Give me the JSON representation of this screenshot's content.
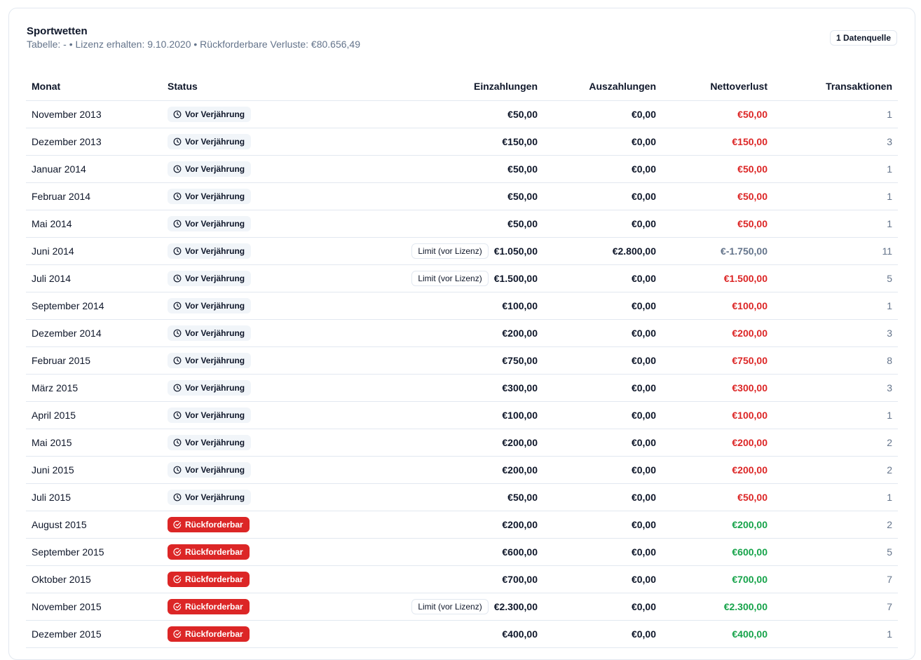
{
  "card": {
    "title": "Sportwetten",
    "subtitle": "Tabelle: - • Lizenz erhalten: 9.10.2020 • Rückforderbare Verluste: €80.656,49",
    "source_badge": "1 Datenquelle"
  },
  "table": {
    "headers": {
      "month": "Monat",
      "status": "Status",
      "deposits": "Einzahlungen",
      "withdrawals": "Auszahlungen",
      "net_loss": "Nettoverlust",
      "transactions": "Transaktionen"
    },
    "status_labels": {
      "before": "Vor Verjährung",
      "recoverable": "Rückforderbar"
    },
    "limit_label": "Limit (vor Lizenz)",
    "colors": {
      "loss": "#dc2626",
      "neutral": "#64748b",
      "gain": "#16a34a",
      "recoverable_badge": "#dc2626"
    },
    "rows": [
      {
        "month": "November 2013",
        "status": "before",
        "limit": false,
        "deposits": "€50,00",
        "withdrawals": "€0,00",
        "net": "€50,00",
        "net_tone": "loss",
        "tx": "1"
      },
      {
        "month": "Dezember 2013",
        "status": "before",
        "limit": false,
        "deposits": "€150,00",
        "withdrawals": "€0,00",
        "net": "€150,00",
        "net_tone": "loss",
        "tx": "3"
      },
      {
        "month": "Januar 2014",
        "status": "before",
        "limit": false,
        "deposits": "€50,00",
        "withdrawals": "€0,00",
        "net": "€50,00",
        "net_tone": "loss",
        "tx": "1"
      },
      {
        "month": "Februar 2014",
        "status": "before",
        "limit": false,
        "deposits": "€50,00",
        "withdrawals": "€0,00",
        "net": "€50,00",
        "net_tone": "loss",
        "tx": "1"
      },
      {
        "month": "Mai 2014",
        "status": "before",
        "limit": false,
        "deposits": "€50,00",
        "withdrawals": "€0,00",
        "net": "€50,00",
        "net_tone": "loss",
        "tx": "1"
      },
      {
        "month": "Juni 2014",
        "status": "before",
        "limit": true,
        "deposits": "€1.050,00",
        "withdrawals": "€2.800,00",
        "net": "€-1.750,00",
        "net_tone": "neutral",
        "tx": "11"
      },
      {
        "month": "Juli 2014",
        "status": "before",
        "limit": true,
        "deposits": "€1.500,00",
        "withdrawals": "€0,00",
        "net": "€1.500,00",
        "net_tone": "loss",
        "tx": "5"
      },
      {
        "month": "September 2014",
        "status": "before",
        "limit": false,
        "deposits": "€100,00",
        "withdrawals": "€0,00",
        "net": "€100,00",
        "net_tone": "loss",
        "tx": "1"
      },
      {
        "month": "Dezember 2014",
        "status": "before",
        "limit": false,
        "deposits": "€200,00",
        "withdrawals": "€0,00",
        "net": "€200,00",
        "net_tone": "loss",
        "tx": "3"
      },
      {
        "month": "Februar 2015",
        "status": "before",
        "limit": false,
        "deposits": "€750,00",
        "withdrawals": "€0,00",
        "net": "€750,00",
        "net_tone": "loss",
        "tx": "8"
      },
      {
        "month": "März 2015",
        "status": "before",
        "limit": false,
        "deposits": "€300,00",
        "withdrawals": "€0,00",
        "net": "€300,00",
        "net_tone": "loss",
        "tx": "3"
      },
      {
        "month": "April 2015",
        "status": "before",
        "limit": false,
        "deposits": "€100,00",
        "withdrawals": "€0,00",
        "net": "€100,00",
        "net_tone": "loss",
        "tx": "1"
      },
      {
        "month": "Mai 2015",
        "status": "before",
        "limit": false,
        "deposits": "€200,00",
        "withdrawals": "€0,00",
        "net": "€200,00",
        "net_tone": "loss",
        "tx": "2"
      },
      {
        "month": "Juni 2015",
        "status": "before",
        "limit": false,
        "deposits": "€200,00",
        "withdrawals": "€0,00",
        "net": "€200,00",
        "net_tone": "loss",
        "tx": "2"
      },
      {
        "month": "Juli 2015",
        "status": "before",
        "limit": false,
        "deposits": "€50,00",
        "withdrawals": "€0,00",
        "net": "€50,00",
        "net_tone": "loss",
        "tx": "1"
      },
      {
        "month": "August 2015",
        "status": "recoverable",
        "limit": false,
        "deposits": "€200,00",
        "withdrawals": "€0,00",
        "net": "€200,00",
        "net_tone": "gain",
        "tx": "2"
      },
      {
        "month": "September 2015",
        "status": "recoverable",
        "limit": false,
        "deposits": "€600,00",
        "withdrawals": "€0,00",
        "net": "€600,00",
        "net_tone": "gain",
        "tx": "5"
      },
      {
        "month": "Oktober 2015",
        "status": "recoverable",
        "limit": false,
        "deposits": "€700,00",
        "withdrawals": "€0,00",
        "net": "€700,00",
        "net_tone": "gain",
        "tx": "7"
      },
      {
        "month": "November 2015",
        "status": "recoverable",
        "limit": true,
        "deposits": "€2.300,00",
        "withdrawals": "€0,00",
        "net": "€2.300,00",
        "net_tone": "gain",
        "tx": "7"
      },
      {
        "month": "Dezember 2015",
        "status": "recoverable",
        "limit": false,
        "deposits": "€400,00",
        "withdrawals": "€0,00",
        "net": "€400,00",
        "net_tone": "gain",
        "tx": "1"
      }
    ]
  }
}
